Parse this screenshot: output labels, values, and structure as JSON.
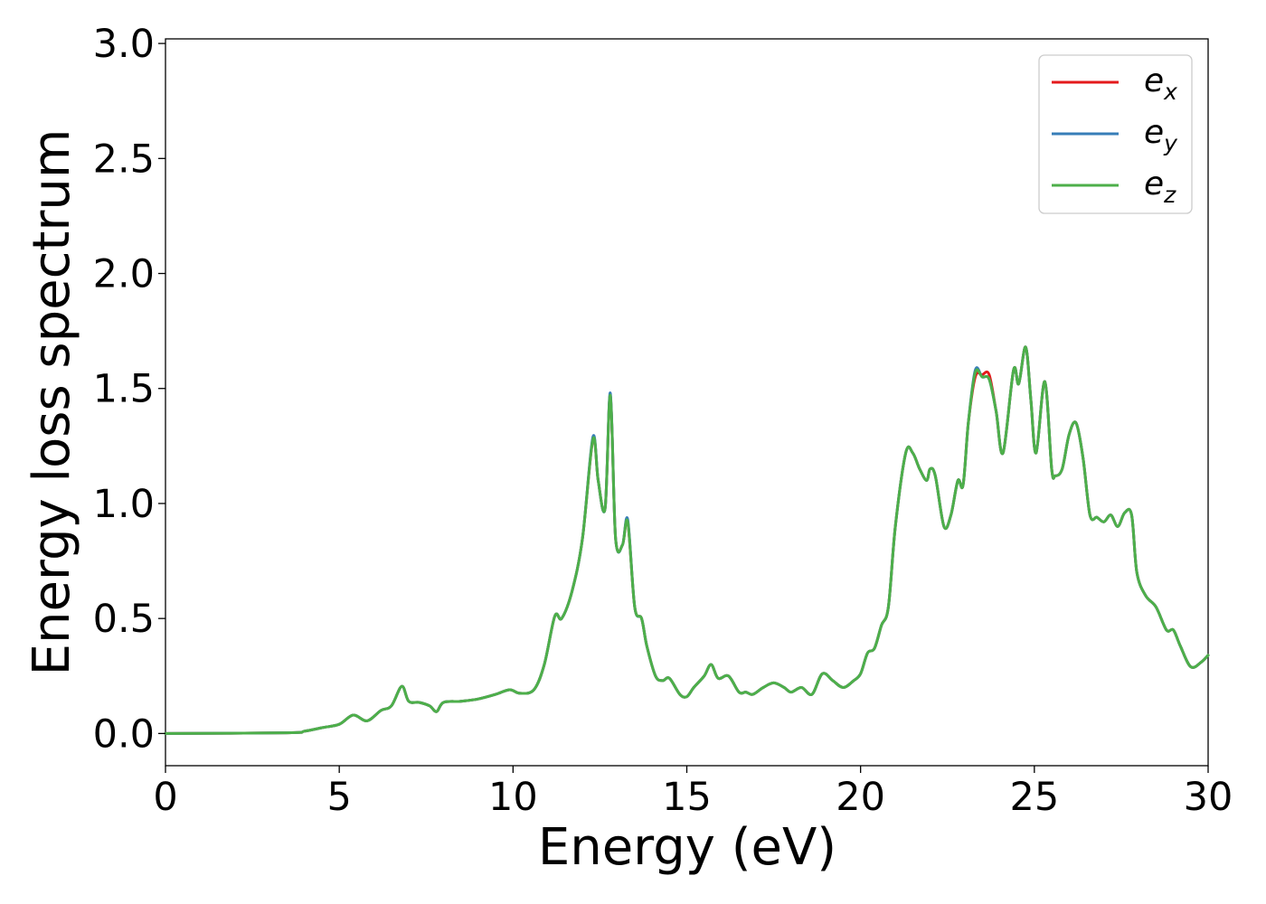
{
  "chart_data": {
    "type": "line",
    "title": "",
    "xlabel": "Energy (eV)",
    "ylabel": "Energy loss spectrum",
    "xlim": [
      0,
      30
    ],
    "ylim": [
      -0.14,
      3.02
    ],
    "xticks": [
      0,
      5,
      10,
      15,
      20,
      25,
      30
    ],
    "xtick_labels": [
      "0",
      "5",
      "10",
      "15",
      "20",
      "25",
      "30"
    ],
    "yticks": [
      0.0,
      0.5,
      1.0,
      1.5,
      2.0,
      2.5,
      3.0
    ],
    "ytick_labels": [
      "0.0",
      "0.5",
      "1.0",
      "1.5",
      "2.0",
      "2.5",
      "3.0"
    ],
    "grid": false,
    "legend": {
      "placement": "top-right",
      "entries": [
        {
          "base": "e",
          "sub": "x",
          "color": "#e41a1c"
        },
        {
          "base": "e",
          "sub": "y",
          "color": "#377eb8"
        },
        {
          "base": "e",
          "sub": "z",
          "color": "#4daf4a"
        }
      ]
    },
    "x": [
      0,
      3.5,
      4,
      4.5,
      5,
      5.4,
      5.8,
      6.2,
      6.5,
      6.8,
      7.0,
      7.3,
      7.6,
      7.8,
      8.0,
      8.5,
      9.0,
      9.5,
      9.9,
      10.2,
      10.6,
      10.9,
      11.2,
      11.4,
      11.7,
      12.0,
      12.3,
      12.45,
      12.65,
      12.8,
      12.95,
      13.15,
      13.3,
      13.5,
      13.7,
      13.85,
      14.1,
      14.3,
      14.5,
      14.8,
      15.0,
      15.2,
      15.5,
      15.7,
      15.9,
      16.2,
      16.5,
      16.7,
      16.9,
      17.2,
      17.5,
      17.8,
      18.0,
      18.3,
      18.6,
      18.9,
      19.2,
      19.5,
      19.8,
      20.0,
      20.2,
      20.4,
      20.6,
      20.8,
      21.0,
      21.3,
      21.5,
      21.7,
      21.9,
      22.0,
      22.15,
      22.4,
      22.6,
      22.8,
      22.95,
      23.1,
      23.3,
      23.5,
      23.7,
      23.9,
      24.1,
      24.4,
      24.55,
      24.75,
      24.9,
      25.05,
      25.3,
      25.5,
      25.6,
      25.8,
      26.0,
      26.2,
      26.4,
      26.6,
      26.8,
      27.0,
      27.2,
      27.4,
      27.6,
      27.8,
      27.95,
      28.2,
      28.5,
      28.8,
      29.0,
      29.2,
      29.5,
      29.8,
      30.0
    ],
    "series": [
      {
        "name": "e_x",
        "color": "#e41a1c",
        "values": [
          0.0,
          0.003,
          0.01,
          0.025,
          0.04,
          0.08,
          0.055,
          0.1,
          0.12,
          0.205,
          0.14,
          0.135,
          0.12,
          0.095,
          0.135,
          0.14,
          0.15,
          0.17,
          0.19,
          0.175,
          0.19,
          0.3,
          0.51,
          0.5,
          0.62,
          0.85,
          1.28,
          1.1,
          0.98,
          1.47,
          0.85,
          0.82,
          0.92,
          0.55,
          0.5,
          0.38,
          0.25,
          0.23,
          0.24,
          0.17,
          0.16,
          0.2,
          0.25,
          0.3,
          0.24,
          0.25,
          0.18,
          0.18,
          0.17,
          0.2,
          0.22,
          0.2,
          0.18,
          0.2,
          0.17,
          0.26,
          0.23,
          0.2,
          0.23,
          0.26,
          0.35,
          0.37,
          0.47,
          0.55,
          0.9,
          1.22,
          1.22,
          1.15,
          1.1,
          1.15,
          1.12,
          0.9,
          0.95,
          1.1,
          1.08,
          1.35,
          1.55,
          1.56,
          1.56,
          1.4,
          1.22,
          1.58,
          1.52,
          1.68,
          1.45,
          1.22,
          1.53,
          1.15,
          1.12,
          1.15,
          1.3,
          1.35,
          1.2,
          0.95,
          0.94,
          0.92,
          0.95,
          0.9,
          0.96,
          0.95,
          0.7,
          0.6,
          0.55,
          0.45,
          0.45,
          0.38,
          0.29,
          0.31,
          0.34
        ]
      },
      {
        "name": "e_y",
        "color": "#377eb8",
        "values": [
          0.0,
          0.003,
          0.01,
          0.025,
          0.04,
          0.08,
          0.055,
          0.1,
          0.12,
          0.205,
          0.14,
          0.135,
          0.12,
          0.095,
          0.135,
          0.14,
          0.15,
          0.17,
          0.19,
          0.175,
          0.19,
          0.3,
          0.51,
          0.5,
          0.62,
          0.85,
          1.29,
          1.1,
          0.98,
          1.48,
          0.85,
          0.82,
          0.93,
          0.55,
          0.5,
          0.38,
          0.25,
          0.23,
          0.24,
          0.17,
          0.16,
          0.2,
          0.25,
          0.3,
          0.24,
          0.25,
          0.18,
          0.18,
          0.17,
          0.2,
          0.22,
          0.2,
          0.18,
          0.2,
          0.17,
          0.26,
          0.23,
          0.2,
          0.23,
          0.26,
          0.35,
          0.37,
          0.47,
          0.55,
          0.9,
          1.22,
          1.22,
          1.15,
          1.1,
          1.15,
          1.12,
          0.9,
          0.95,
          1.1,
          1.08,
          1.35,
          1.58,
          1.55,
          1.54,
          1.4,
          1.22,
          1.58,
          1.52,
          1.68,
          1.45,
          1.22,
          1.53,
          1.15,
          1.12,
          1.15,
          1.3,
          1.35,
          1.2,
          0.95,
          0.94,
          0.92,
          0.95,
          0.9,
          0.96,
          0.95,
          0.7,
          0.6,
          0.55,
          0.45,
          0.45,
          0.38,
          0.29,
          0.31,
          0.34
        ]
      },
      {
        "name": "e_z",
        "color": "#4daf4a",
        "values": [
          0.0,
          0.003,
          0.01,
          0.025,
          0.04,
          0.08,
          0.055,
          0.1,
          0.12,
          0.205,
          0.14,
          0.135,
          0.12,
          0.095,
          0.135,
          0.14,
          0.15,
          0.17,
          0.19,
          0.175,
          0.19,
          0.3,
          0.51,
          0.5,
          0.62,
          0.85,
          1.28,
          1.1,
          0.98,
          1.47,
          0.85,
          0.82,
          0.92,
          0.55,
          0.5,
          0.38,
          0.25,
          0.23,
          0.24,
          0.17,
          0.16,
          0.2,
          0.25,
          0.3,
          0.24,
          0.25,
          0.18,
          0.18,
          0.17,
          0.2,
          0.22,
          0.2,
          0.18,
          0.2,
          0.17,
          0.26,
          0.23,
          0.2,
          0.23,
          0.26,
          0.35,
          0.37,
          0.47,
          0.55,
          0.9,
          1.22,
          1.22,
          1.15,
          1.1,
          1.15,
          1.12,
          0.9,
          0.95,
          1.1,
          1.08,
          1.35,
          1.57,
          1.55,
          1.54,
          1.4,
          1.22,
          1.58,
          1.52,
          1.68,
          1.45,
          1.22,
          1.53,
          1.15,
          1.12,
          1.15,
          1.3,
          1.35,
          1.2,
          0.95,
          0.94,
          0.92,
          0.95,
          0.9,
          0.96,
          0.95,
          0.7,
          0.6,
          0.55,
          0.45,
          0.45,
          0.38,
          0.29,
          0.31,
          0.34
        ]
      }
    ]
  }
}
